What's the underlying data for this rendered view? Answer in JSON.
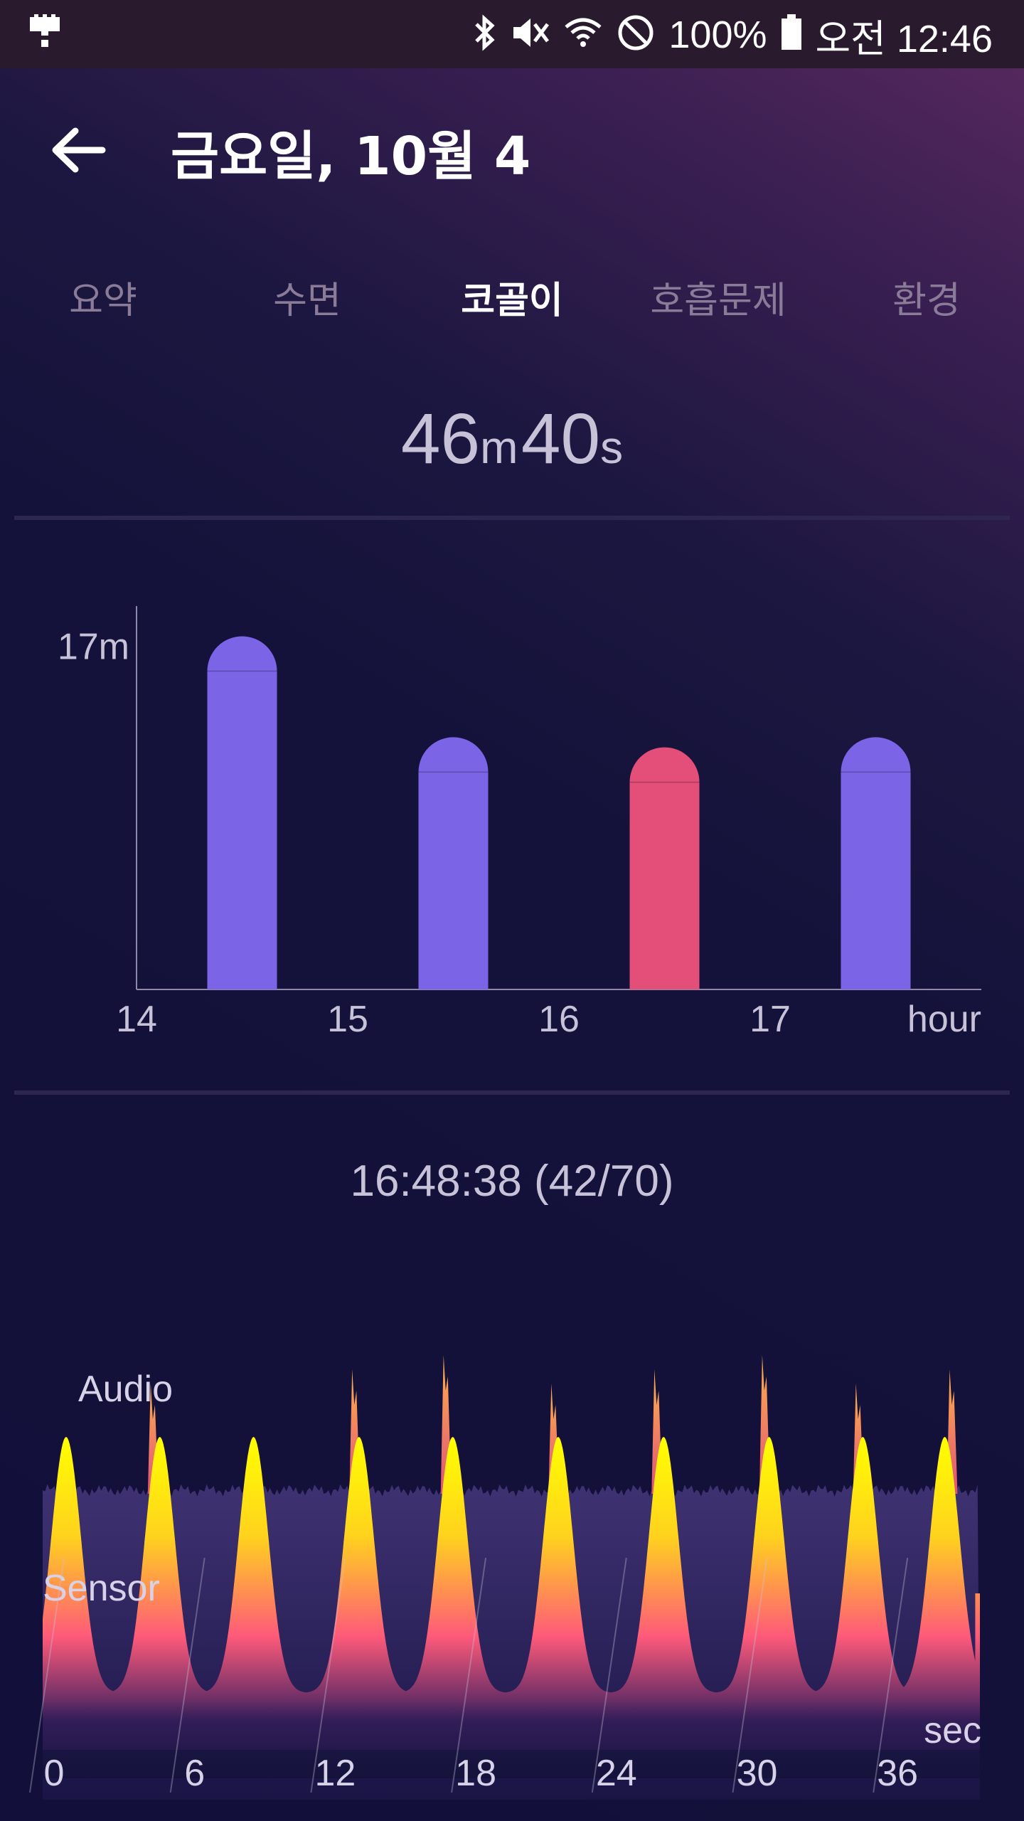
{
  "status_bar": {
    "battery": "100%",
    "time": "오전 12:46",
    "icons": [
      "usb-icon",
      "bluetooth-icon",
      "mute-icon",
      "wifi-icon",
      "do-not-disturb-icon",
      "battery-icon"
    ]
  },
  "header": {
    "title": "금요일, 10월 4"
  },
  "tabs": [
    {
      "label": "요약",
      "active": false
    },
    {
      "label": "수면",
      "active": false
    },
    {
      "label": "코골이",
      "active": true
    },
    {
      "label": "호흡문제",
      "active": false
    },
    {
      "label": "환경",
      "active": false
    }
  ],
  "summary": {
    "minutes": "46",
    "minutes_unit": "m",
    "seconds": "40",
    "seconds_unit": "s"
  },
  "colors": {
    "bar_normal": "#7c64e6",
    "bar_selected": "#e34f78",
    "waveform_yellow": "#ffff00",
    "waveform_pink": "#ff5a7a",
    "audio_band": "#3a2c66"
  },
  "snapshot": {
    "label": "16:48:38 (42/70)"
  },
  "chart_data": [
    {
      "type": "bar",
      "x_ticks": [
        "14",
        "15",
        "16",
        "17"
      ],
      "x_unit": "hour",
      "y_tick_label": "17m",
      "y_tick_value": 17,
      "categories": [
        "14:30",
        "15:30",
        "16:30",
        "17:30"
      ],
      "values": [
        17.5,
        12.5,
        12.0,
        12.5
      ],
      "selected_index": 2,
      "ylim": [
        0,
        19
      ]
    },
    {
      "type": "area",
      "series_labels": [
        "Audio",
        "Sensor"
      ],
      "x_ticks": [
        "0",
        "6",
        "12",
        "18",
        "24",
        "30",
        "36"
      ],
      "x_unit": "sec",
      "xlim": [
        0,
        40
      ],
      "sensor_peaks_sec": [
        1,
        5,
        9,
        13.5,
        17.5,
        22,
        26.5,
        31,
        35,
        38.5
      ],
      "audio_spike_sec": [
        4.7,
        13.3,
        17.2,
        21.8,
        26.2,
        30.8,
        34.8,
        38.8
      ]
    }
  ]
}
